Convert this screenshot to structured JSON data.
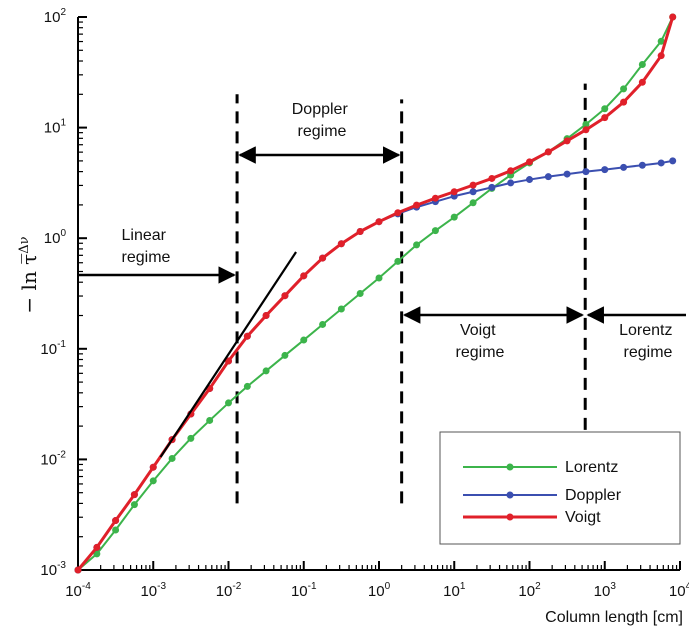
{
  "chart_data": {
    "type": "line",
    "xlabel": "Column length [cm]",
    "ylabel": "− ln τ̅",
    "ylabel_superscript": "Δν",
    "xscale": "log",
    "yscale": "log",
    "xlim": [
      0.0001,
      10000
    ],
    "ylim": [
      0.001,
      100
    ],
    "grid": false,
    "legend_position": "bottom-right",
    "x_ticks": [
      {
        "base": "10",
        "exp": "-4",
        "value": 0.0001
      },
      {
        "base": "10",
        "exp": "-3",
        "value": 0.001
      },
      {
        "base": "10",
        "exp": "-2",
        "value": 0.01
      },
      {
        "base": "10",
        "exp": "-1",
        "value": 0.1
      },
      {
        "base": "10",
        "exp": "0",
        "value": 1
      },
      {
        "base": "10",
        "exp": "1",
        "value": 10
      },
      {
        "base": "10",
        "exp": "2",
        "value": 100
      },
      {
        "base": "10",
        "exp": "3",
        "value": 1000
      },
      {
        "base": "10",
        "exp": "4",
        "value": 10000
      }
    ],
    "y_ticks": [
      {
        "base": "10",
        "exp": "-3",
        "value": 0.001
      },
      {
        "base": "10",
        "exp": "-2",
        "value": 0.01
      },
      {
        "base": "10",
        "exp": "-1",
        "value": 0.1
      },
      {
        "base": "10",
        "exp": "0",
        "value": 1
      },
      {
        "base": "10",
        "exp": "1",
        "value": 10
      },
      {
        "base": "10",
        "exp": "2",
        "value": 100
      }
    ],
    "series": [
      {
        "name": "Lorentz",
        "color": "#3cb44b",
        "x": [
          0.0001,
          0.000178,
          0.000316,
          0.000562,
          0.001,
          0.00178,
          0.00316,
          0.00562,
          0.01,
          0.0178,
          0.0316,
          0.0562,
          0.1,
          0.178,
          0.316,
          0.562,
          1,
          1.78,
          3.16,
          5.62,
          10,
          17.8,
          31.6,
          56.2,
          100,
          178,
          316,
          562,
          1000,
          1780,
          3160,
          5620,
          8000
        ],
        "y": [
          0.001,
          0.0014,
          0.0023,
          0.0039,
          0.0064,
          0.0102,
          0.0155,
          0.0225,
          0.0324,
          0.0457,
          0.0631,
          0.0871,
          0.12,
          0.166,
          0.229,
          0.316,
          0.437,
          0.617,
          0.87,
          1.17,
          1.55,
          2.09,
          2.82,
          3.72,
          4.79,
          6.03,
          7.94,
          10.7,
          14.8,
          22.4,
          37.2,
          60.3,
          100
        ]
      },
      {
        "name": "Doppler",
        "color": "#3b4fb0",
        "x": [
          0.0001,
          0.000178,
          0.000316,
          0.000562,
          0.001,
          0.00178,
          0.00316,
          0.00562,
          0.01,
          0.0178,
          0.0316,
          0.0562,
          0.1,
          0.178,
          0.316,
          0.562,
          1,
          1.78,
          3.16,
          5.62,
          10,
          17.8,
          31.6,
          56.2,
          100,
          178,
          316,
          562,
          1000,
          1780,
          3160,
          5620,
          8000
        ],
        "y": [
          0.001,
          0.0016,
          0.0028,
          0.0048,
          0.0085,
          0.0151,
          0.0257,
          0.0437,
          0.0776,
          0.13,
          0.2,
          0.302,
          0.457,
          0.661,
          0.891,
          1.15,
          1.41,
          1.66,
          1.91,
          2.14,
          2.4,
          2.63,
          2.88,
          3.16,
          3.39,
          3.6,
          3.8,
          4.0,
          4.17,
          4.37,
          4.57,
          4.79,
          5.0
        ]
      },
      {
        "name": "Voigt",
        "color": "#e0202a",
        "x": [
          0.0001,
          0.000178,
          0.000316,
          0.000562,
          0.001,
          0.00178,
          0.00316,
          0.00562,
          0.01,
          0.0178,
          0.0316,
          0.0562,
          0.1,
          0.178,
          0.316,
          0.562,
          1,
          1.78,
          3.16,
          5.62,
          10,
          17.8,
          31.6,
          56.2,
          100,
          178,
          316,
          562,
          1000,
          1780,
          3160,
          5620,
          8000
        ],
        "y": [
          0.001,
          0.0016,
          0.0028,
          0.0048,
          0.0085,
          0.0151,
          0.0257,
          0.0437,
          0.0776,
          0.13,
          0.2,
          0.302,
          0.457,
          0.661,
          0.891,
          1.15,
          1.41,
          1.7,
          1.99,
          2.3,
          2.63,
          3.02,
          3.47,
          4.07,
          4.9,
          6.03,
          7.59,
          9.55,
          12.3,
          17.0,
          25.7,
          44.7,
          100
        ]
      }
    ],
    "linear_fit_line": {
      "x": [
        0.00125,
        0.079
      ],
      "y": [
        0.0105,
        0.75
      ],
      "color": "#000000"
    },
    "boundaries": [
      {
        "x": 0.013,
        "y": [
          0.004,
          20
        ]
      },
      {
        "x": 2.0,
        "y": [
          0.004,
          18
        ]
      },
      {
        "x": 550,
        "y": [
          0.0035,
          25
        ]
      }
    ],
    "annotations": [
      {
        "key": "linear",
        "lines": [
          "Linear",
          "regime"
        ]
      },
      {
        "key": "doppler",
        "lines": [
          "Doppler",
          "regime"
        ]
      },
      {
        "key": "voigt",
        "lines": [
          "Voigt",
          "regime"
        ]
      },
      {
        "key": "lorentz",
        "lines": [
          "Lorentz",
          "regime"
        ]
      }
    ]
  }
}
